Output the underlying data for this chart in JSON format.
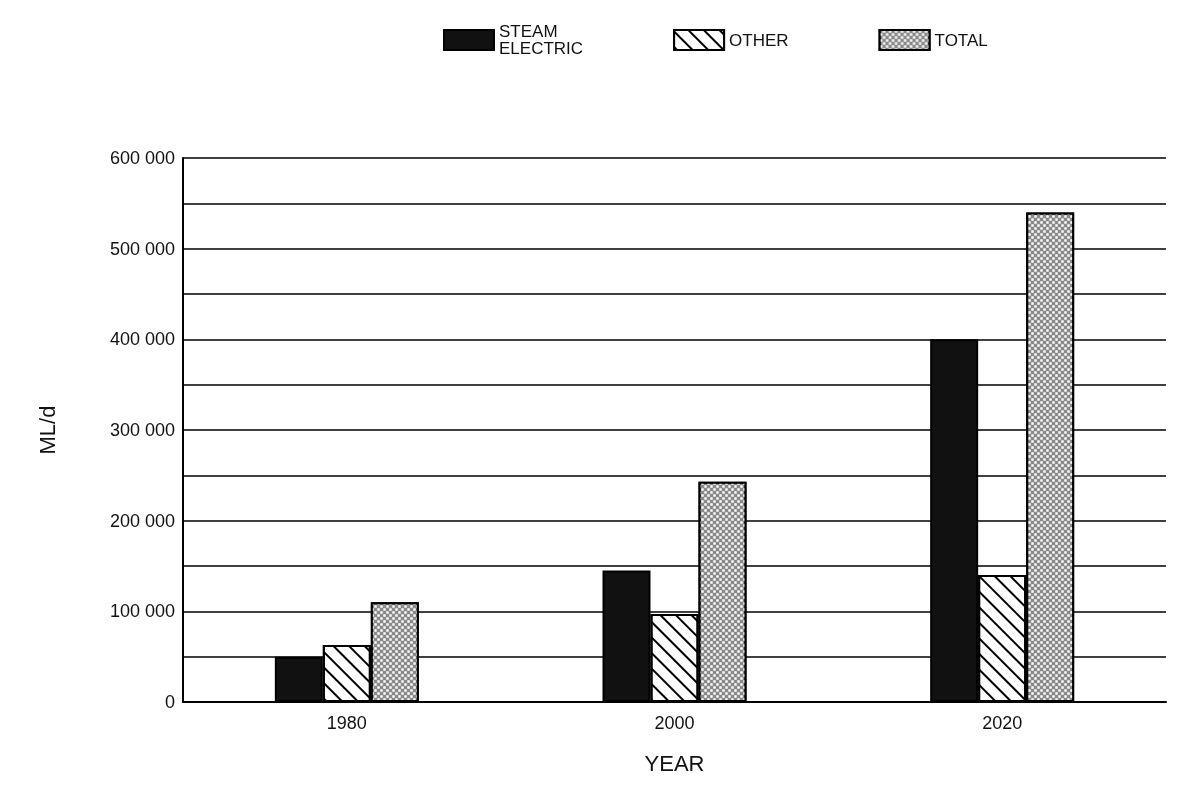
{
  "chart_data": {
    "type": "bar",
    "xlabel": "YEAR",
    "ylabel": "ML/d",
    "categories": [
      "1980",
      "2000",
      "2020"
    ],
    "series": [
      {
        "name": "STEAM ELECTRIC",
        "color": "#111111",
        "values": [
          50000,
          145000,
          400000
        ]
      },
      {
        "name": "OTHER",
        "color": "#ffffff",
        "values": [
          63000,
          97000,
          140000
        ]
      },
      {
        "name": "TOTAL",
        "color": "#8a8a8a",
        "values": [
          110000,
          243000,
          540000
        ]
      }
    ],
    "ylim": [
      0,
      600000
    ],
    "yticks": [
      0,
      {
        "value": 50000,
        "label": null
      },
      {
        "value": 100000,
        "label": "100 000"
      },
      {
        "value": 150000,
        "label": null
      },
      {
        "value": 200000,
        "label": "200 000"
      },
      {
        "value": 250000,
        "label": null
      },
      {
        "value": 300000,
        "label": "300 000"
      },
      {
        "value": 350000,
        "label": null
      },
      {
        "value": 400000,
        "label": "400 000"
      },
      {
        "value": 450000,
        "label": null
      },
      {
        "value": 500000,
        "label": "500 000"
      },
      {
        "value": 550000,
        "label": null
      },
      {
        "value": 600000,
        "label": "600 000"
      }
    ],
    "grid": "y",
    "legend": "top"
  }
}
